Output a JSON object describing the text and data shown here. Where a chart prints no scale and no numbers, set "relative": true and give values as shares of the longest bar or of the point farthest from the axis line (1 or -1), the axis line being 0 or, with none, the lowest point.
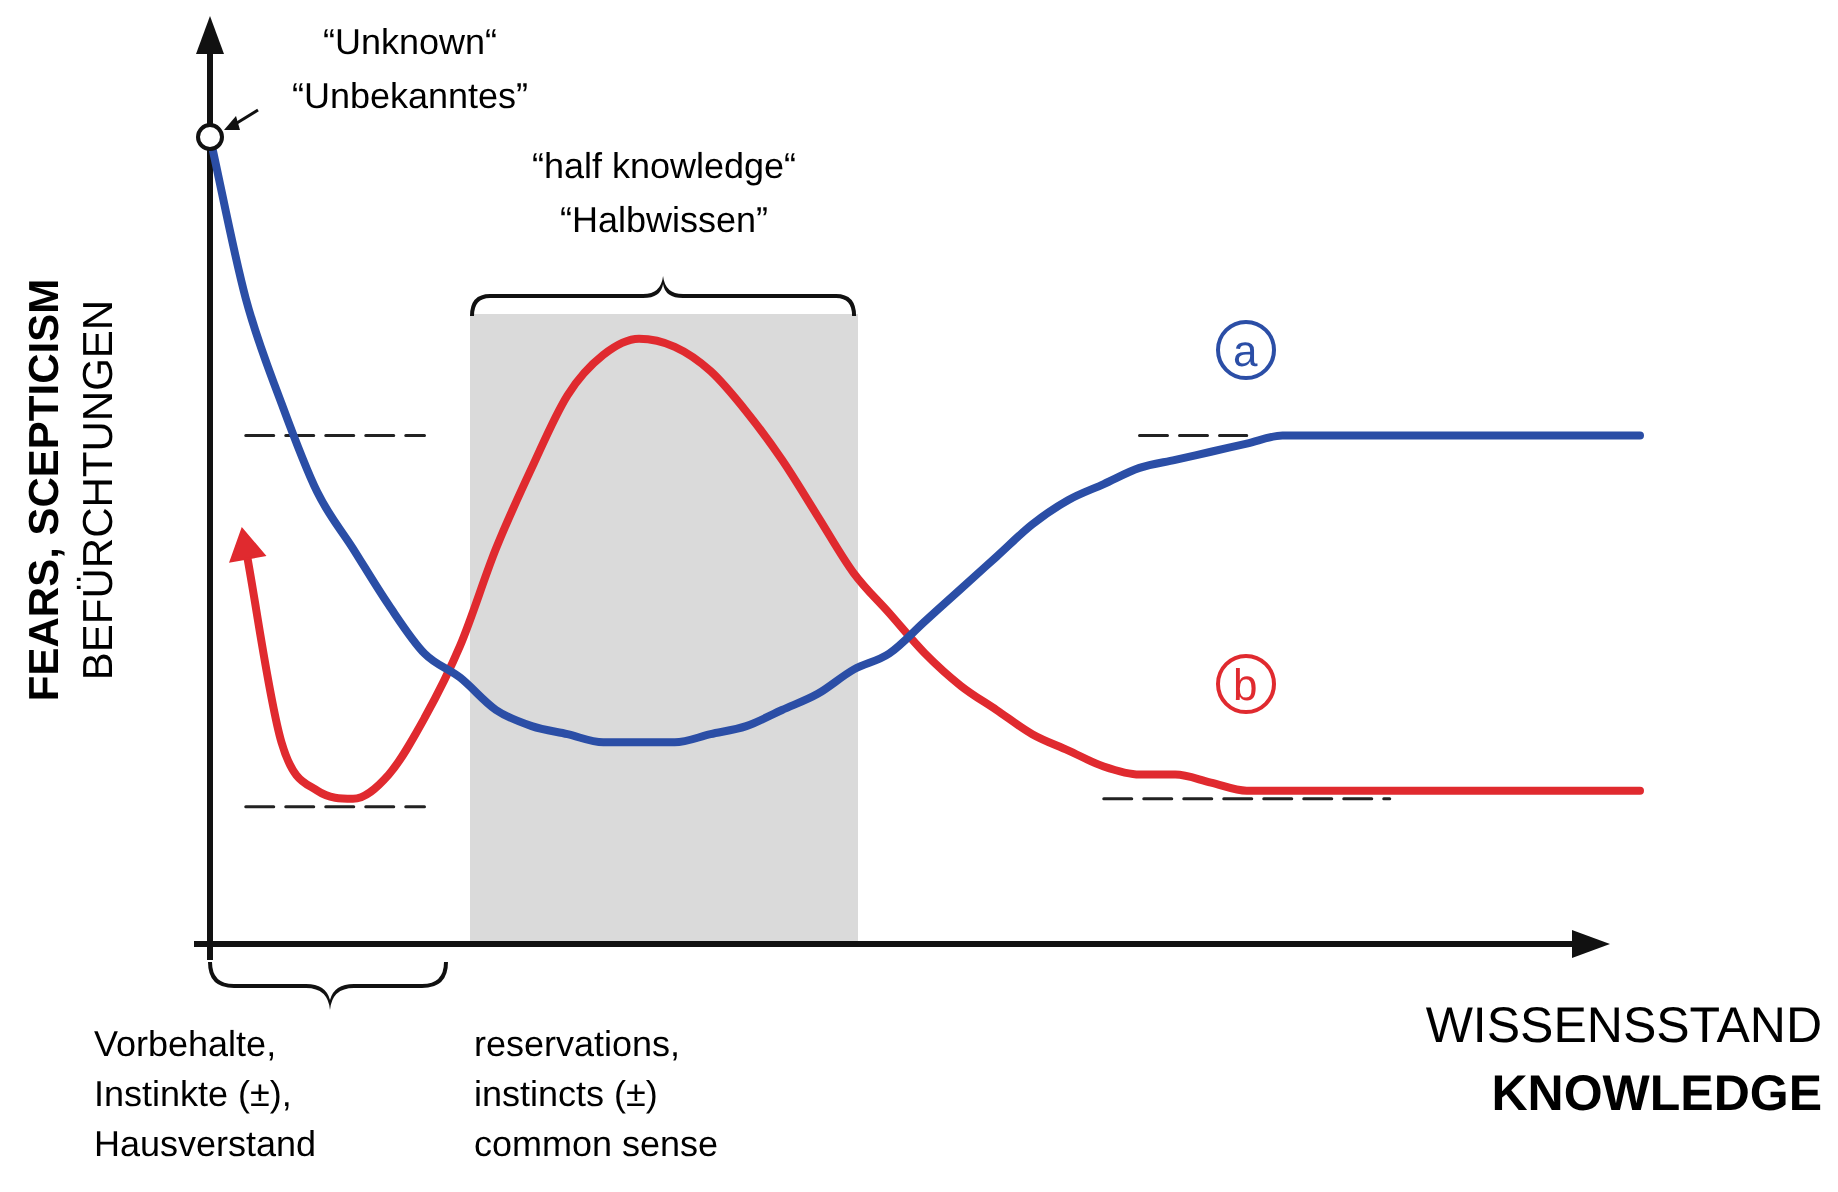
{
  "chart_data": {
    "type": "line",
    "relative": true,
    "ylabel": "FEARS, SCEPTICISM\nBEFÜRCHTUNGEN",
    "xlabel": "WISSENSSTAND\nKNOWLEDGE",
    "categories": [
      null,
      null,
      null,
      null,
      null,
      null,
      null,
      null,
      null,
      null,
      null,
      null,
      null,
      null,
      null,
      null,
      null,
      null,
      null,
      null,
      null,
      null,
      null,
      null,
      null,
      null,
      null,
      null,
      null,
      null,
      null,
      null,
      null,
      null,
      null,
      null,
      null,
      null,
      null,
      null,
      null
    ],
    "series": [
      {
        "name": "a",
        "type": "line",
        "color": "#2b4ea6",
        "values": [
          1.0,
          0.8,
          0.67,
          0.56,
          0.49,
          0.42,
          0.36,
          0.33,
          0.29,
          0.27,
          0.26,
          0.25,
          0.25,
          0.25,
          0.26,
          0.27,
          0.29,
          0.31,
          0.34,
          0.36,
          0.4,
          0.44,
          0.48,
          0.52,
          0.55,
          0.57,
          0.59,
          0.6,
          0.61,
          0.62,
          0.63,
          0.63,
          0.63,
          0.63,
          0.63,
          0.63,
          0.63,
          0.63,
          0.63,
          0.63,
          0.63
        ]
      },
      {
        "name": "b",
        "type": "line",
        "color": "#e02a2f",
        "values": [
          null,
          0.49,
          0.25,
          0.19,
          0.18,
          0.21,
          0.28,
          0.37,
          0.49,
          0.59,
          0.68,
          0.73,
          0.75,
          0.74,
          0.71,
          0.66,
          0.6,
          0.53,
          0.46,
          0.41,
          0.36,
          0.32,
          0.29,
          0.26,
          0.24,
          0.22,
          0.21,
          0.21,
          0.2,
          0.19,
          0.19,
          0.19,
          0.19,
          0.19,
          0.19,
          0.19,
          0.19,
          0.19,
          0.19,
          0.19,
          0.19
        ]
      },
      {
        "type": "line",
        "line_style": "dashed",
        "color": "#222222",
        "values": [
          null,
          0.63,
          0.63,
          0.63,
          0.63,
          0.63,
          0.63,
          null,
          null,
          null,
          null,
          null,
          null,
          null,
          null,
          null,
          null,
          null,
          null,
          null,
          null,
          null,
          null,
          null,
          null,
          null,
          null,
          null,
          null,
          null,
          null,
          null,
          null,
          null,
          null,
          null,
          null,
          null,
          null,
          null,
          null
        ]
      },
      {
        "type": "line",
        "line_style": "dashed",
        "color": "#222222",
        "values": [
          null,
          null,
          null,
          null,
          null,
          null,
          null,
          null,
          null,
          null,
          null,
          null,
          null,
          null,
          null,
          null,
          null,
          null,
          null,
          null,
          null,
          null,
          null,
          null,
          null,
          null,
          0.63,
          0.63,
          0.63,
          0.63,
          null,
          null,
          null,
          null,
          null,
          null,
          null,
          null,
          null,
          null,
          null
        ]
      },
      {
        "type": "line",
        "line_style": "dashed",
        "color": "#222222",
        "values": [
          null,
          0.17,
          0.17,
          0.17,
          0.17,
          0.17,
          0.17,
          null,
          null,
          null,
          null,
          null,
          null,
          null,
          null,
          null,
          null,
          null,
          null,
          null,
          null,
          null,
          null,
          null,
          null,
          null,
          null,
          null,
          null,
          null,
          null,
          null,
          null,
          null,
          null,
          null,
          null,
          null,
          null,
          null,
          null
        ]
      },
      {
        "type": "line",
        "line_style": "dashed",
        "color": "#222222",
        "values": [
          null,
          null,
          null,
          null,
          null,
          null,
          null,
          null,
          null,
          null,
          null,
          null,
          null,
          null,
          null,
          null,
          null,
          null,
          null,
          null,
          null,
          null,
          null,
          null,
          null,
          0.18,
          0.18,
          0.18,
          0.18,
          0.18,
          0.18,
          0.18,
          0.18,
          0.18,
          null,
          null,
          null,
          null,
          null,
          null,
          null
        ]
      }
    ],
    "annotations": [
      "“Unknown“\n“Unbekanntes”",
      "Vorbehalte,\nInstinkte (±),\nHausverstand",
      "reservations,\ninstincts (±)\ncommon sense",
      "“half knowledge“\n“Halbwissen”"
    ]
  }
}
